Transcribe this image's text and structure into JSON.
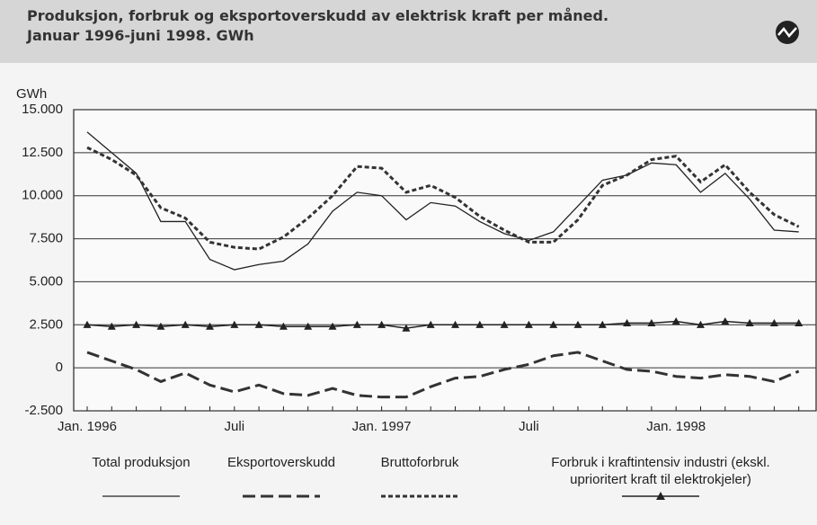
{
  "chart_data": {
    "type": "line",
    "title": "Produksjon, forbruk og eksportoverskudd av elektrisk kraft per måned.",
    "subtitle": "Januar 1996-juni 1998. GWh",
    "y_label": "GWh",
    "categories": [
      "Jan. 1996",
      null,
      null,
      null,
      null,
      null,
      "Juli",
      null,
      null,
      null,
      null,
      null,
      "Jan. 1997",
      null,
      null,
      null,
      null,
      null,
      "Juli",
      null,
      null,
      null,
      null,
      null,
      "Jan. 1998",
      null,
      null,
      null,
      null,
      null
    ],
    "series": [
      {
        "name": "Total produksjon",
        "color": "#222222",
        "style": "solid",
        "values": [
          13700,
          12500,
          11300,
          8500,
          8500,
          6300,
          5700,
          6000,
          6200,
          7200,
          9100,
          10200,
          10000,
          8600,
          9600,
          9400,
          8500,
          7800,
          7400,
          7900,
          9400,
          10900,
          11200,
          11900,
          11800,
          10200,
          11300,
          9800,
          8000,
          7900
        ]
      },
      {
        "name": "Eksportoverskudd",
        "color": "#333333",
        "style": "longdash",
        "values": [
          900,
          400,
          -100,
          -800,
          -300,
          -1000,
          -1400,
          -1000,
          -1500,
          -1600,
          -1200,
          -1600,
          -1700,
          -1700,
          -1100,
          -600,
          -500,
          -100,
          200,
          700,
          900,
          400,
          -100,
          -200,
          -500,
          -600,
          -400,
          -500,
          -800,
          -200
        ]
      },
      {
        "name": "Bruttoforbruk",
        "color": "#333333",
        "style": "shortdash",
        "values": [
          12800,
          12100,
          11200,
          9300,
          8700,
          7300,
          7000,
          6900,
          7600,
          8700,
          10000,
          11700,
          11600,
          10200,
          10600,
          9900,
          8800,
          8000,
          7300,
          7300,
          8600,
          10600,
          11200,
          12100,
          12300,
          10800,
          11800,
          10200,
          8900,
          8200
        ]
      },
      {
        "name": "Forbruk i kraftintensiv industri (ekskl. uprioritert kraft til elektrokjeler)",
        "color": "#222222",
        "style": "triangle",
        "values": [
          2500,
          2400,
          2500,
          2400,
          2500,
          2400,
          2500,
          2500,
          2400,
          2400,
          2400,
          2500,
          2500,
          2300,
          2500,
          2500,
          2500,
          2500,
          2500,
          2500,
          2500,
          2500,
          2600,
          2600,
          2700,
          2500,
          2700,
          2600,
          2600,
          2600
        ]
      }
    ],
    "ylim": [
      -2500,
      15000
    ],
    "yticks": [
      {
        "value": -2500,
        "label": "-2.500"
      },
      0,
      {
        "value": 2500,
        "label": "2.500"
      },
      {
        "value": 5000,
        "label": "5.000"
      },
      {
        "value": 7500,
        "label": "7.500"
      },
      {
        "value": 10000,
        "label": "10.000"
      },
      {
        "value": 12500,
        "label": "12.500"
      },
      {
        "value": 15000,
        "label": "15.000"
      }
    ],
    "grid": true
  }
}
